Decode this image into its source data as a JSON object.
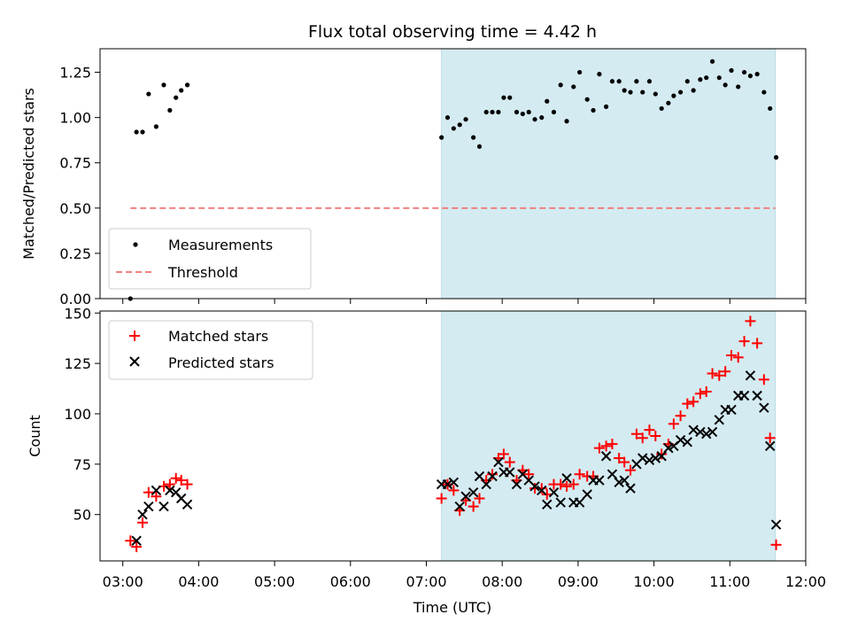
{
  "chart_data": {
    "title": "Flux total observing time = 4.42 h",
    "xlabel": "Time (UTC)",
    "x_ticks": [
      "03:00",
      "04:00",
      "05:00",
      "06:00",
      "07:00",
      "08:00",
      "09:00",
      "10:00",
      "11:00",
      "12:00"
    ],
    "xlim_hours": [
      2.7,
      12.0
    ],
    "shaded_interval_hours": [
      7.2,
      11.6
    ],
    "shade_color": "#d4ebf1",
    "panels": [
      {
        "type": "scatter",
        "ylabel": "Matched/Predicted stars",
        "ylim": [
          0,
          1.38
        ],
        "y_ticks": [
          "0.00",
          "0.25",
          "0.50",
          "0.75",
          "1.00",
          "1.25"
        ],
        "y_tick_values": [
          0,
          0.25,
          0.5,
          0.75,
          1.0,
          1.25
        ],
        "threshold": {
          "name": "Threshold",
          "value": 0.5,
          "x_start": 3.1,
          "x_end": 11.6,
          "color": "#f08080"
        },
        "legend_placement": "lower-left",
        "series": [
          {
            "name": "Measurements",
            "marker": "dot",
            "color": "#000000",
            "points": [
              [
                3.1,
                0.0
              ],
              [
                3.18,
                0.92
              ],
              [
                3.26,
                0.92
              ],
              [
                3.34,
                1.13
              ],
              [
                3.44,
                0.95
              ],
              [
                3.54,
                1.18
              ],
              [
                3.62,
                1.04
              ],
              [
                3.7,
                1.11
              ],
              [
                3.77,
                1.15
              ],
              [
                3.85,
                1.18
              ],
              [
                7.2,
                0.89
              ],
              [
                7.28,
                1.0
              ],
              [
                7.36,
                0.94
              ],
              [
                7.44,
                0.96
              ],
              [
                7.52,
                0.99
              ],
              [
                7.62,
                0.89
              ],
              [
                7.7,
                0.84
              ],
              [
                7.79,
                1.03
              ],
              [
                7.87,
                1.03
              ],
              [
                7.95,
                1.03
              ],
              [
                8.02,
                1.11
              ],
              [
                8.1,
                1.11
              ],
              [
                8.19,
                1.03
              ],
              [
                8.27,
                1.02
              ],
              [
                8.35,
                1.03
              ],
              [
                8.43,
                0.99
              ],
              [
                8.52,
                1.0
              ],
              [
                8.59,
                1.09
              ],
              [
                8.68,
                1.03
              ],
              [
                8.77,
                1.18
              ],
              [
                8.85,
                0.98
              ],
              [
                8.94,
                1.17
              ],
              [
                9.02,
                1.25
              ],
              [
                9.12,
                1.1
              ],
              [
                9.2,
                1.04
              ],
              [
                9.28,
                1.24
              ],
              [
                9.37,
                1.06
              ],
              [
                9.45,
                1.2
              ],
              [
                9.54,
                1.2
              ],
              [
                9.61,
                1.15
              ],
              [
                9.69,
                1.14
              ],
              [
                9.77,
                1.2
              ],
              [
                9.85,
                1.14
              ],
              [
                9.94,
                1.2
              ],
              [
                10.02,
                1.13
              ],
              [
                10.1,
                1.05
              ],
              [
                10.19,
                1.08
              ],
              [
                10.26,
                1.12
              ],
              [
                10.35,
                1.14
              ],
              [
                10.44,
                1.2
              ],
              [
                10.52,
                1.15
              ],
              [
                10.61,
                1.21
              ],
              [
                10.69,
                1.22
              ],
              [
                10.77,
                1.31
              ],
              [
                10.86,
                1.22
              ],
              [
                10.94,
                1.18
              ],
              [
                11.02,
                1.26
              ],
              [
                11.11,
                1.17
              ],
              [
                11.19,
                1.25
              ],
              [
                11.27,
                1.23
              ],
              [
                11.36,
                1.24
              ],
              [
                11.45,
                1.14
              ],
              [
                11.53,
                1.05
              ],
              [
                11.61,
                0.78
              ]
            ]
          }
        ]
      },
      {
        "type": "scatter",
        "ylabel": "Count",
        "ylim": [
          27,
          151
        ],
        "y_ticks": [
          "50",
          "75",
          "100",
          "125",
          "150"
        ],
        "y_tick_values": [
          50,
          75,
          100,
          125,
          150
        ],
        "legend_placement": "upper-left",
        "series": [
          {
            "name": "Matched stars",
            "marker": "plus",
            "color": "#ff0000",
            "points": [
              [
                3.1,
                37
              ],
              [
                3.18,
                34
              ],
              [
                3.26,
                46
              ],
              [
                3.34,
                61
              ],
              [
                3.44,
                59
              ],
              [
                3.54,
                64
              ],
              [
                3.62,
                65
              ],
              [
                3.7,
                68
              ],
              [
                3.77,
                67
              ],
              [
                3.85,
                65
              ],
              [
                7.2,
                58
              ],
              [
                7.28,
                65
              ],
              [
                7.36,
                62
              ],
              [
                7.44,
                52
              ],
              [
                7.52,
                57
              ],
              [
                7.62,
                54
              ],
              [
                7.7,
                58
              ],
              [
                7.79,
                67
              ],
              [
                7.87,
                70
              ],
              [
                7.95,
                78
              ],
              [
                8.02,
                80
              ],
              [
                8.1,
                76
              ],
              [
                8.19,
                67
              ],
              [
                8.27,
                72
              ],
              [
                8.35,
                70
              ],
              [
                8.43,
                63
              ],
              [
                8.52,
                63
              ],
              [
                8.59,
                60
              ],
              [
                8.68,
                65
              ],
              [
                8.77,
                65
              ],
              [
                8.85,
                64
              ],
              [
                8.94,
                65
              ],
              [
                9.02,
                70
              ],
              [
                9.12,
                69
              ],
              [
                9.2,
                69
              ],
              [
                9.28,
                83
              ],
              [
                9.37,
                84
              ],
              [
                9.45,
                85
              ],
              [
                9.54,
                78
              ],
              [
                9.61,
                76
              ],
              [
                9.69,
                72
              ],
              [
                9.77,
                90
              ],
              [
                9.85,
                88
              ],
              [
                9.94,
                92
              ],
              [
                10.02,
                89
              ],
              [
                10.1,
                80
              ],
              [
                10.19,
                85
              ],
              [
                10.26,
                95
              ],
              [
                10.35,
                99
              ],
              [
                10.44,
                105
              ],
              [
                10.52,
                106
              ],
              [
                10.61,
                110
              ],
              [
                10.69,
                111
              ],
              [
                10.77,
                120
              ],
              [
                10.86,
                119
              ],
              [
                10.94,
                121
              ],
              [
                11.02,
                129
              ],
              [
                11.11,
                128
              ],
              [
                11.19,
                136
              ],
              [
                11.27,
                146
              ],
              [
                11.36,
                135
              ],
              [
                11.45,
                117
              ],
              [
                11.53,
                88
              ],
              [
                11.61,
                35
              ]
            ]
          },
          {
            "name": "Predicted stars",
            "marker": "x",
            "color": "#000000",
            "points": [
              [
                3.18,
                37
              ],
              [
                3.26,
                50
              ],
              [
                3.34,
                54
              ],
              [
                3.44,
                62
              ],
              [
                3.54,
                54
              ],
              [
                3.62,
                62
              ],
              [
                3.7,
                61
              ],
              [
                3.77,
                58
              ],
              [
                3.85,
                55
              ],
              [
                7.2,
                65
              ],
              [
                7.28,
                65
              ],
              [
                7.36,
                66
              ],
              [
                7.44,
                54
              ],
              [
                7.52,
                59
              ],
              [
                7.62,
                61
              ],
              [
                7.7,
                69
              ],
              [
                7.79,
                65
              ],
              [
                7.87,
                69
              ],
              [
                7.95,
                76
              ],
              [
                8.02,
                71
              ],
              [
                8.1,
                71
              ],
              [
                8.19,
                65
              ],
              [
                8.27,
                70
              ],
              [
                8.35,
                67
              ],
              [
                8.43,
                64
              ],
              [
                8.52,
                62
              ],
              [
                8.59,
                55
              ],
              [
                8.68,
                61
              ],
              [
                8.77,
                56
              ],
              [
                8.85,
                68
              ],
              [
                8.94,
                56
              ],
              [
                9.02,
                56
              ],
              [
                9.12,
                60
              ],
              [
                9.2,
                67
              ],
              [
                9.28,
                67
              ],
              [
                9.37,
                79
              ],
              [
                9.45,
                70
              ],
              [
                9.54,
                66
              ],
              [
                9.61,
                67
              ],
              [
                9.69,
                63
              ],
              [
                9.77,
                75
              ],
              [
                9.85,
                78
              ],
              [
                9.94,
                77
              ],
              [
                10.02,
                78
              ],
              [
                10.1,
                79
              ],
              [
                10.19,
                83
              ],
              [
                10.26,
                84
              ],
              [
                10.35,
                87
              ],
              [
                10.44,
                86
              ],
              [
                10.52,
                92
              ],
              [
                10.61,
                91
              ],
              [
                10.69,
                90
              ],
              [
                10.77,
                91
              ],
              [
                10.86,
                97
              ],
              [
                10.94,
                102
              ],
              [
                11.02,
                102
              ],
              [
                11.11,
                109
              ],
              [
                11.19,
                109
              ],
              [
                11.27,
                119
              ],
              [
                11.36,
                109
              ],
              [
                11.45,
                103
              ],
              [
                11.53,
                84
              ],
              [
                11.61,
                45
              ]
            ]
          }
        ]
      }
    ]
  }
}
